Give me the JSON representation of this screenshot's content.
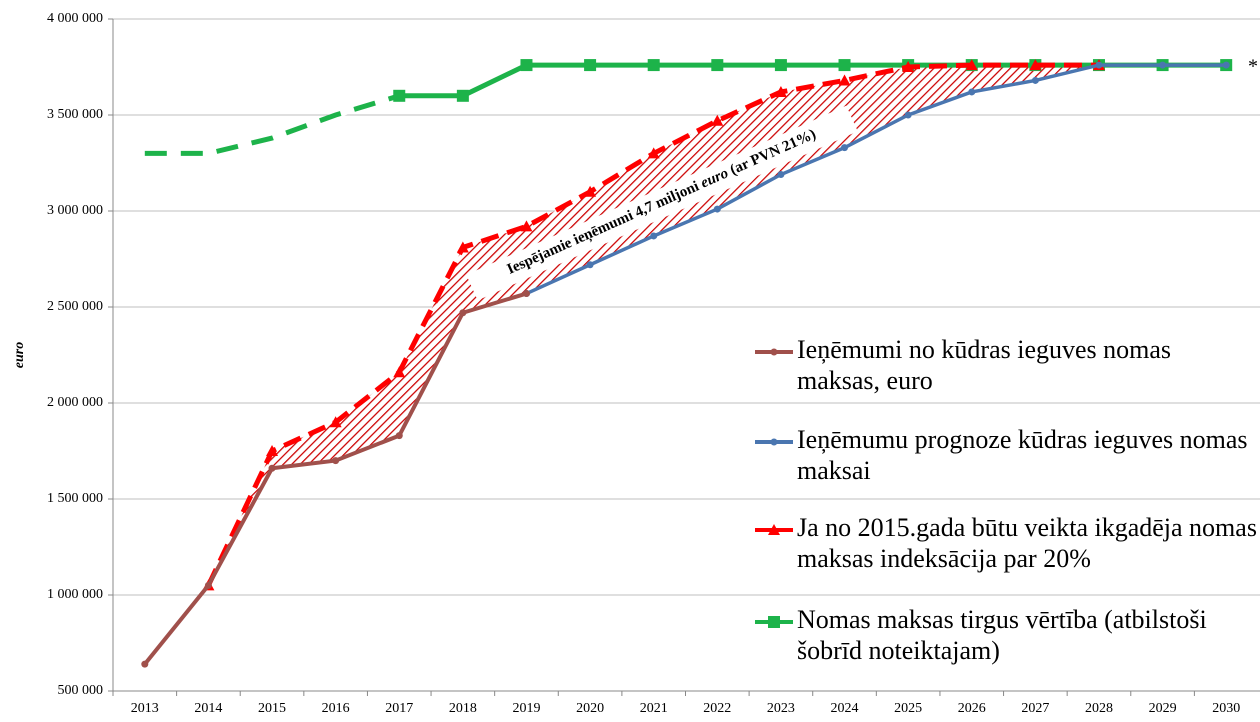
{
  "chart_data": {
    "type": "line",
    "y_label": "euro",
    "annotation": [
      "Iespējamie ieņēmumi 4,7 miljoni ",
      "euro",
      " (ar PVN 21%)"
    ],
    "footnote": "*",
    "categories": [
      "2013",
      "2014",
      "2015",
      "2016",
      "2017",
      "2018",
      "2019",
      "2020",
      "2021",
      "2022",
      "2023",
      "2024",
      "2025",
      "2026",
      "2027",
      "2028",
      "2029",
      "2030"
    ],
    "ylim": [
      500000,
      4000000
    ],
    "yticks": [
      {
        "value": 500000,
        "label": "500 000"
      },
      {
        "value": 1000000,
        "label": "1 000 000"
      },
      {
        "value": 1500000,
        "label": "1 500 000"
      },
      {
        "value": 2000000,
        "label": "2 000 000"
      },
      {
        "value": 2500000,
        "label": "2 500 000"
      },
      {
        "value": 3000000,
        "label": "3 000 000"
      },
      {
        "value": 3500000,
        "label": "3 500 000"
      },
      {
        "value": 4000000,
        "label": "4 000 000"
      }
    ],
    "grid": true,
    "series": [
      {
        "name": "Ieņēmumi no kūdras ieguves nomas maksas, euro",
        "color": "#a0504b",
        "marker": "circle",
        "values": [
          640000,
          1050000,
          1660000,
          1700000,
          1830000,
          2470000,
          2570000,
          null,
          null,
          null,
          null,
          null,
          null,
          null,
          null,
          null,
          null,
          null
        ]
      },
      {
        "name": "Ieņēmumu prognoze kūdras ieguves nomas maksai",
        "color": "#4a76b0",
        "marker": "circle",
        "values": [
          null,
          null,
          null,
          null,
          null,
          null,
          2570000,
          2720000,
          2870000,
          3010000,
          3190000,
          3330000,
          3500000,
          3620000,
          3680000,
          3760000,
          3760000,
          3760000
        ]
      },
      {
        "name": "Ja no 2015.gada būtu veikta ikgadēja nomas maksas indeksācija par 20%",
        "color": "#ff0000",
        "marker": "triangle",
        "values": [
          null,
          1050000,
          1750000,
          1900000,
          2160000,
          2810000,
          2920000,
          3100000,
          3300000,
          3470000,
          3620000,
          3680000,
          3750000,
          3760000,
          3760000,
          3760000,
          null,
          null
        ]
      },
      {
        "name": "Nomas maksas tirgus vērtība (atbilstoši šobrīd noteiktajam)",
        "color": "#1db34a",
        "marker": "square",
        "values": [
          3300000,
          3300000,
          3380000,
          3500000,
          3600000,
          3600000,
          3760000,
          3760000,
          3760000,
          3760000,
          3760000,
          3760000,
          3760000,
          3760000,
          3760000,
          3760000,
          3760000,
          3760000
        ]
      }
    ]
  }
}
